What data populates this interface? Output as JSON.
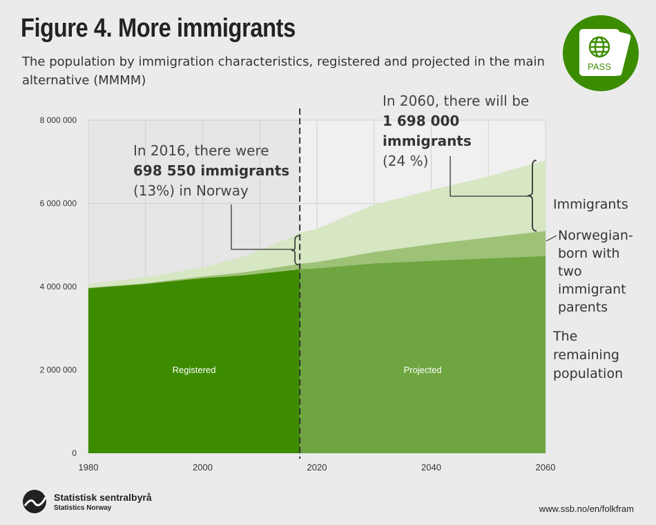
{
  "title": "Figure 4. More immigrants",
  "subtitle": "The population by immigration characteristics, registered and projected in the main alternative (MMMM)",
  "badge": {
    "label": "PASS",
    "icon": "globe-icon"
  },
  "colors": {
    "registered": "#3d8b00",
    "projected": "#6ea540",
    "norwegian_born": "#9dc276",
    "immigrants": "#d7e6c3",
    "grid": "#cfcfcf",
    "projection_bg": "#f0f0f0",
    "annotation_line": "#333333"
  },
  "chart_data": {
    "type": "area",
    "stacked": true,
    "x": [
      1980,
      1990,
      2000,
      2007,
      2016,
      2017,
      2020,
      2030,
      2040,
      2050,
      2060
    ],
    "series": [
      {
        "name": "The remaining population",
        "values": [
          3962000,
          4065000,
          4205000,
          4270000,
          4400000,
          4418000,
          4441000,
          4560000,
          4620000,
          4680000,
          4737000
        ]
      },
      {
        "name": "Norwegian-born with two immigrant parents",
        "values": [
          8000,
          18000,
          40000,
          70000,
          125000,
          130000,
          150000,
          270000,
          400000,
          500000,
          600000
        ]
      },
      {
        "name": "Immigrants",
        "values": [
          100000,
          142000,
          213000,
          375000,
          698550,
          750000,
          800000,
          1140000,
          1300000,
          1470000,
          1698000
        ]
      }
    ],
    "xlim": [
      1980,
      2060
    ],
    "ylim": [
      0,
      8000000
    ],
    "x_ticks": [
      1980,
      2000,
      2020,
      2040,
      2060
    ],
    "x_tick_labels": [
      "1980",
      "2000",
      "2020",
      "2040",
      "2060"
    ],
    "y_ticks": [
      0,
      2000000,
      4000000,
      6000000,
      8000000
    ],
    "y_tick_labels": [
      "0",
      "2 000 000",
      "4 000 000",
      "6 000 000",
      "8 000 000"
    ],
    "divider_x": 2017,
    "region_labels": {
      "registered": "Registered",
      "projected": "Projected"
    },
    "series_labels": {
      "immigrants": "Immigrants",
      "norwegian_born": [
        "Norwegian-",
        "born with",
        "two",
        "immigrant",
        "parents"
      ],
      "remaining": [
        "The",
        "remaining",
        "population"
      ]
    },
    "annotation_2016": {
      "line1": "In 2016, there were",
      "line2": "698 550 immigrants",
      "line3": "(13%) in Norway"
    },
    "annotation_2060": {
      "line1": "In 2060, there will be",
      "line2": "1 698 000",
      "line3": "immigrants",
      "line4": "(24 %)"
    }
  },
  "footer": {
    "org_name": "Statistisk sentralbyrå",
    "org_sub": "Statistics Norway",
    "source": "www.ssb.no/en/folkfram"
  }
}
